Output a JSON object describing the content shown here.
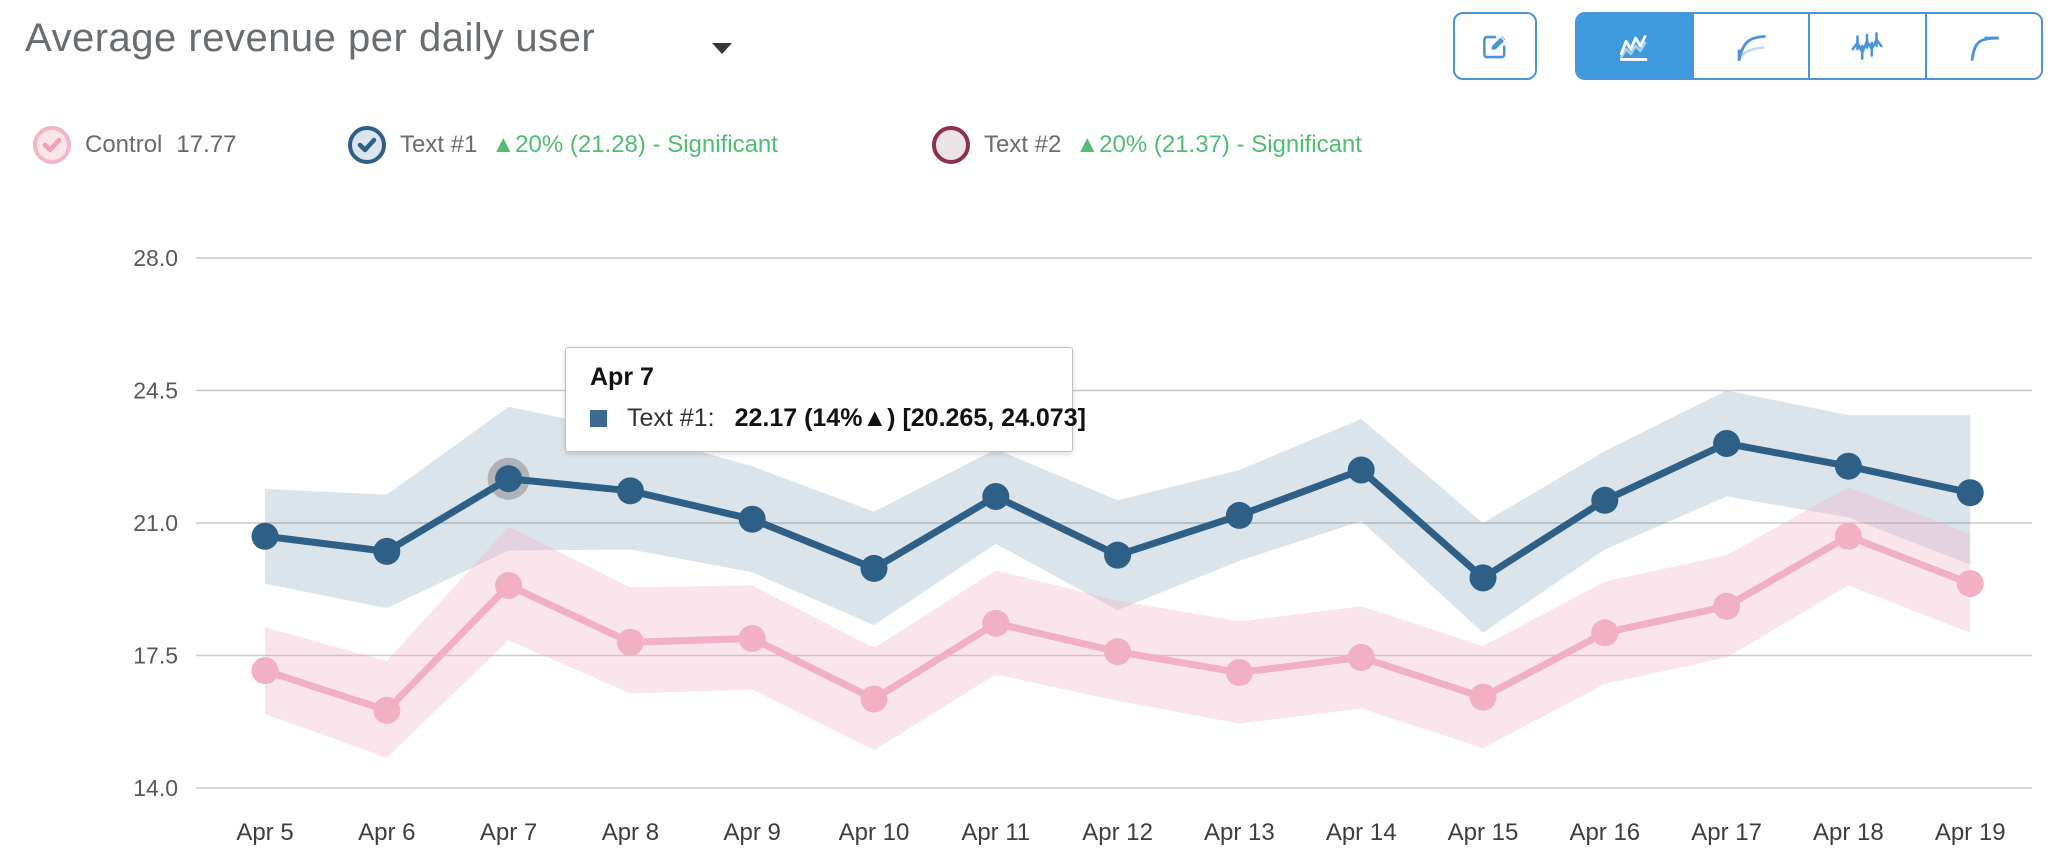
{
  "header": {
    "title": "Average revenue per daily user",
    "caret_icon": "caret-down"
  },
  "toolbar": {
    "accent_color": "#4a94dc",
    "active_bg": "#3f99dd",
    "edit_button": {
      "icon": "edit-pencil-square"
    },
    "chart_type_buttons": [
      {
        "icon": "daily-line-chart",
        "active": true
      },
      {
        "icon": "cumulative-chart",
        "active": false
      },
      {
        "icon": "error-bars-chart",
        "active": false
      },
      {
        "icon": "smooth-curve-chart",
        "active": false
      }
    ]
  },
  "legend": {
    "delta_color": "#4fbe73",
    "items": [
      {
        "label": "Control",
        "value": "17.77",
        "delta_text": "",
        "checked": true,
        "ring_color": "#f4b6c6",
        "fill_color": "#fbe5eb",
        "check_color": "#ef9fb8"
      },
      {
        "label": "Text #1",
        "value": "",
        "delta_text": "▲20% (21.28) - Significant",
        "checked": true,
        "ring_color": "#2e5f87",
        "fill_color": "#dce5ed",
        "check_color": "#2e5f87"
      },
      {
        "label": "Text #2",
        "value": "",
        "delta_text": "▲20% (21.37) - Significant",
        "checked": false,
        "ring_color": "#8e3049",
        "fill_color": "#ebe3e5",
        "check_color": "#8e3049"
      }
    ]
  },
  "tooltip": {
    "title": "Apr 7",
    "series_label": "Text #1:",
    "value_text": "22.17 (14%▲) [20.265, 24.073]",
    "marker_color": "#3d6a94"
  },
  "chart_data": {
    "type": "line",
    "title": "Average revenue per daily user",
    "xlabel": "",
    "ylabel": "",
    "grid": true,
    "legend_position": "top",
    "ylim": [
      14.0,
      28.0
    ],
    "yticks": [
      28.0,
      24.5,
      21.0,
      17.5,
      14.0
    ],
    "x": [
      "Apr 5",
      "Apr 6",
      "Apr 7",
      "Apr 8",
      "Apr 9",
      "Apr 10",
      "Apr 11",
      "Apr 12",
      "Apr 13",
      "Apr 14",
      "Apr 15",
      "Apr 16",
      "Apr 17",
      "Apr 18",
      "Apr 19"
    ],
    "series": [
      {
        "name": "Control",
        "color": "#f1b0c4",
        "band_fill": "rgba(241,176,196,0.33)",
        "values": [
          17.1,
          16.05,
          19.35,
          17.85,
          17.95,
          16.35,
          18.35,
          17.6,
          17.05,
          17.45,
          16.4,
          18.1,
          18.8,
          20.65,
          19.4
        ],
        "ci_upper": [
          18.25,
          17.35,
          20.9,
          19.3,
          19.35,
          17.7,
          19.75,
          18.95,
          18.4,
          18.8,
          17.75,
          19.45,
          20.15,
          21.95,
          20.7
        ],
        "ci_lower": [
          15.95,
          14.8,
          17.9,
          16.5,
          16.6,
          15.0,
          17.0,
          16.3,
          15.7,
          16.1,
          15.05,
          16.75,
          17.45,
          19.35,
          18.1
        ]
      },
      {
        "name": "Text #1",
        "color": "#2e5f87",
        "band_fill": "rgba(46,95,135,0.17)",
        "values": [
          20.65,
          20.25,
          22.17,
          21.85,
          21.1,
          19.8,
          21.7,
          20.15,
          21.2,
          22.4,
          19.55,
          21.6,
          23.1,
          22.5,
          21.8
        ],
        "ci_upper": [
          21.9,
          21.75,
          24.07,
          23.4,
          22.5,
          21.3,
          22.95,
          21.6,
          22.4,
          23.75,
          21.0,
          22.9,
          24.5,
          23.85,
          23.85
        ],
        "ci_lower": [
          19.4,
          18.75,
          20.27,
          20.3,
          19.7,
          18.3,
          20.45,
          18.7,
          20.0,
          21.05,
          18.1,
          20.3,
          21.7,
          21.15,
          19.9
        ]
      }
    ],
    "highlight": {
      "series": "Text #1",
      "series_index": 1,
      "x_index": 2,
      "x_label": "Apr 7"
    }
  }
}
